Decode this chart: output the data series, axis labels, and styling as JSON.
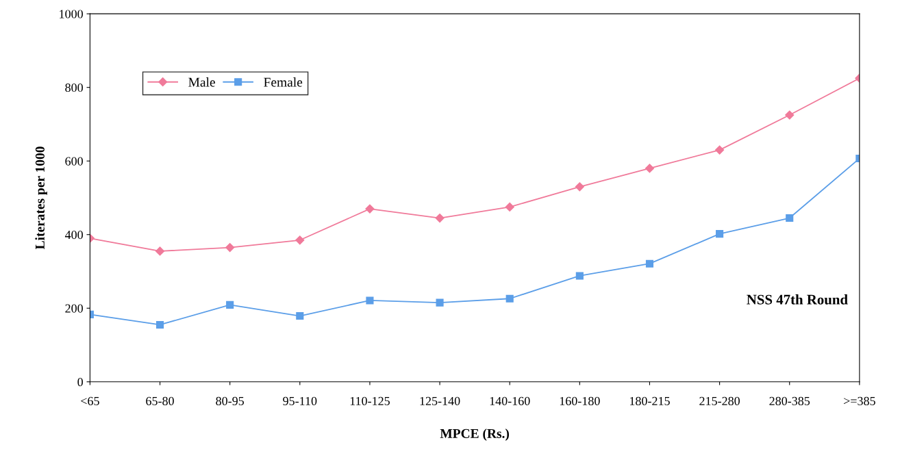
{
  "chart_data": {
    "type": "line",
    "xlabel": "MPCE (Rs.)",
    "ylabel": "Literates per 1000",
    "categories": [
      "<65",
      "65-80",
      "80-95",
      "95-110",
      "110-125",
      "125-140",
      "140-160",
      "160-180",
      "180-215",
      "215-280",
      "280-385",
      ">=385"
    ],
    "series": [
      {
        "name": "Male",
        "color": "#f07a9a",
        "marker": "diamond",
        "values": [
          390,
          355,
          365,
          385,
          470,
          445,
          475,
          530,
          580,
          630,
          725,
          825
        ]
      },
      {
        "name": "Female",
        "color": "#5b9ee8",
        "marker": "square",
        "values": [
          183,
          155,
          209,
          179,
          221,
          215,
          226,
          288,
          321,
          402,
          445,
          607
        ]
      }
    ],
    "ylim": [
      0,
      1000
    ],
    "yticks": [
      0,
      200,
      400,
      600,
      800,
      1000
    ],
    "legend": "top left",
    "grid": false,
    "annotations": [
      "NSS 47th Round"
    ]
  }
}
